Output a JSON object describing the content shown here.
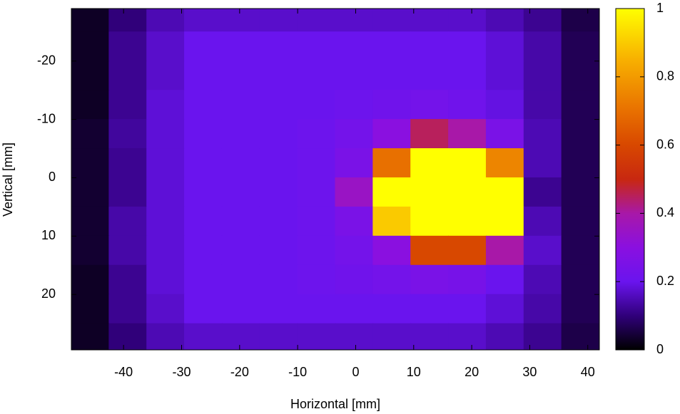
{
  "chart_data": {
    "type": "heatmap",
    "x_label": "Horizontal [mm]",
    "y_label": "Vertical [mm]",
    "xlim": [
      -49,
      42
    ],
    "ylim": [
      -29,
      29.5
    ],
    "xticks": [
      -40,
      -30,
      -20,
      -10,
      0,
      10,
      20,
      30,
      40
    ],
    "yticks": [
      -20,
      -10,
      0,
      10,
      20
    ],
    "x": [
      -45.75,
      -39.25,
      -32.75,
      -26.25,
      -19.75,
      -13.25,
      -6.75,
      -0.25,
      6.25,
      12.75,
      19.25,
      25.75,
      32.25,
      38.75
    ],
    "y": [
      -27.5,
      -22.5,
      -17.5,
      -12.5,
      -7.5,
      -2.5,
      2.5,
      7.5,
      12.5,
      17.5,
      22.5,
      27.5
    ],
    "z": [
      [
        0.03,
        0.1,
        0.15,
        0.17,
        0.17,
        0.17,
        0.17,
        0.17,
        0.17,
        0.17,
        0.17,
        0.15,
        0.12,
        0.06
      ],
      [
        0.03,
        0.12,
        0.17,
        0.2,
        0.2,
        0.2,
        0.2,
        0.2,
        0.2,
        0.2,
        0.2,
        0.18,
        0.14,
        0.07
      ],
      [
        0.03,
        0.12,
        0.17,
        0.2,
        0.2,
        0.2,
        0.2,
        0.2,
        0.2,
        0.2,
        0.2,
        0.18,
        0.14,
        0.07
      ],
      [
        0.03,
        0.12,
        0.18,
        0.2,
        0.2,
        0.2,
        0.2,
        0.21,
        0.22,
        0.23,
        0.22,
        0.19,
        0.14,
        0.07
      ],
      [
        0.04,
        0.13,
        0.18,
        0.2,
        0.2,
        0.2,
        0.21,
        0.23,
        0.3,
        0.45,
        0.4,
        0.25,
        0.15,
        0.07
      ],
      [
        0.04,
        0.12,
        0.18,
        0.2,
        0.2,
        0.2,
        0.21,
        0.25,
        0.7,
        1,
        1,
        0.75,
        0.15,
        0.07
      ],
      [
        0.04,
        0.12,
        0.18,
        0.2,
        0.2,
        0.2,
        0.21,
        0.35,
        1,
        1,
        1,
        1,
        0.12,
        0.07
      ],
      [
        0.04,
        0.14,
        0.18,
        0.2,
        0.2,
        0.2,
        0.21,
        0.25,
        0.9,
        1,
        1,
        1,
        0.15,
        0.07
      ],
      [
        0.04,
        0.14,
        0.18,
        0.2,
        0.2,
        0.2,
        0.21,
        0.23,
        0.3,
        0.6,
        0.6,
        0.4,
        0.17,
        0.07
      ],
      [
        0.03,
        0.12,
        0.18,
        0.2,
        0.2,
        0.2,
        0.21,
        0.22,
        0.23,
        0.25,
        0.24,
        0.2,
        0.15,
        0.07
      ],
      [
        0.03,
        0.12,
        0.17,
        0.2,
        0.2,
        0.2,
        0.2,
        0.2,
        0.2,
        0.2,
        0.2,
        0.18,
        0.14,
        0.07
      ],
      [
        0.03,
        0.1,
        0.15,
        0.17,
        0.17,
        0.17,
        0.17,
        0.17,
        0.17,
        0.17,
        0.17,
        0.15,
        0.12,
        0.06
      ]
    ],
    "zlim": [
      0,
      1
    ],
    "zticks": [
      0,
      0.2,
      0.4,
      0.6,
      0.8,
      1
    ],
    "colorscale": [
      [
        0,
        "#000000"
      ],
      [
        0.1,
        "#30007a"
      ],
      [
        0.2,
        "#6a14ee"
      ],
      [
        0.3,
        "#8a10e0"
      ],
      [
        0.4,
        "#a818a8"
      ],
      [
        0.5,
        "#c82810"
      ],
      [
        0.6,
        "#d84800"
      ],
      [
        0.7,
        "#e87000"
      ],
      [
        0.85,
        "#f8b000"
      ],
      [
        1,
        "#ffff00"
      ]
    ]
  }
}
